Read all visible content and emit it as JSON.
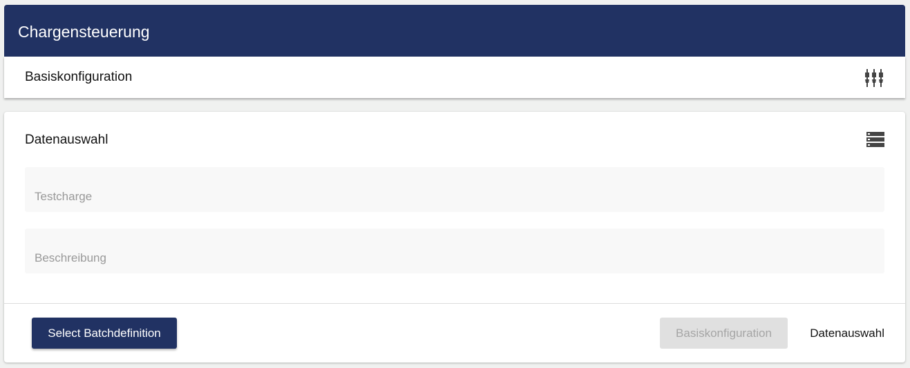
{
  "header": {
    "title": "Chargensteuerung"
  },
  "basis": {
    "title": "Basiskonfiguration",
    "icon": "tune-icon"
  },
  "card": {
    "title": "Datenauswahl",
    "icon": "storage-icon",
    "fields": [
      {
        "placeholder": "Testcharge"
      },
      {
        "placeholder": "Beschreibung"
      }
    ]
  },
  "footer": {
    "select_label": "Select Batchdefinition",
    "basis_label": "Basiskonfiguration",
    "daten_label": "Datenauswahl"
  },
  "colors": {
    "primary": "#213263"
  }
}
